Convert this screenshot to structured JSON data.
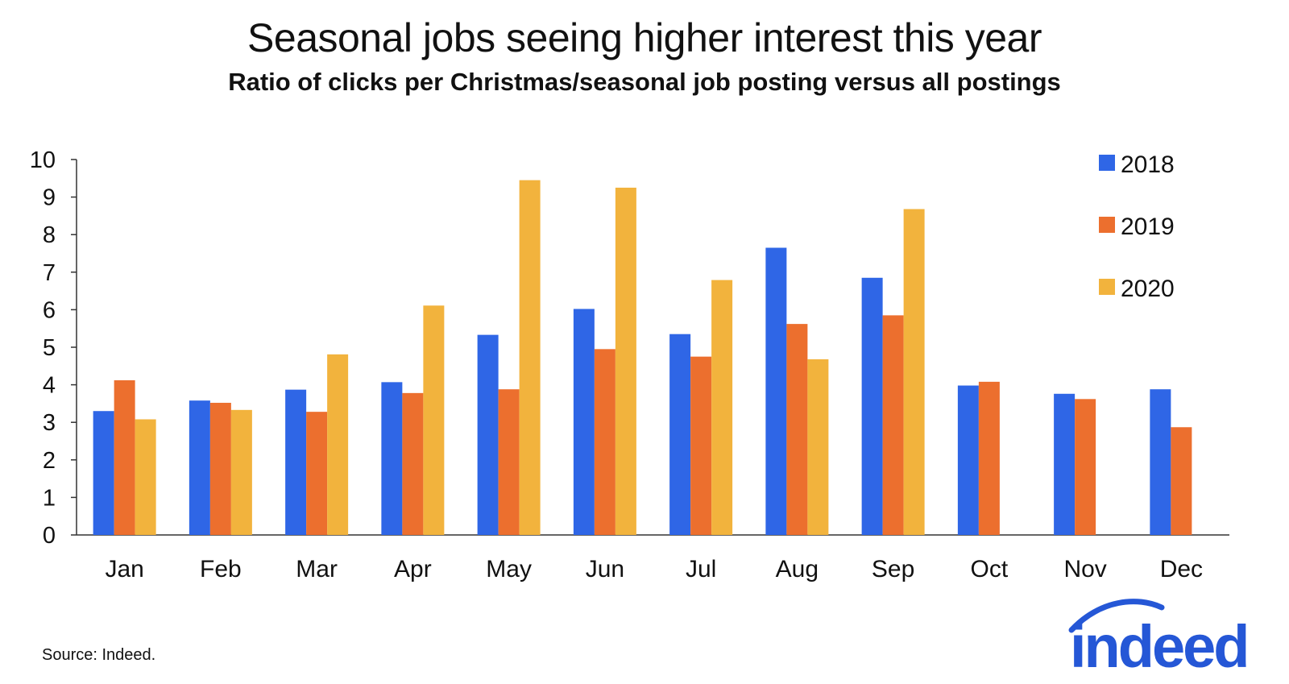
{
  "header": {
    "title": "Seasonal jobs seeing higher interest this year",
    "subtitle": "Ratio of clicks per Christmas/seasonal job posting versus all postings"
  },
  "footer": {
    "source": "Source: Indeed.",
    "logo_text": "indeed"
  },
  "colors": {
    "2018": "#2F66E6",
    "2019": "#EC6F2E",
    "2020": "#F2B33D",
    "logo": "#2557D6"
  },
  "chart_data": {
    "type": "bar",
    "title": "Seasonal jobs seeing higher interest this year",
    "subtitle": "Ratio of clicks per Christmas/seasonal job posting versus all postings",
    "xlabel": "",
    "ylabel": "",
    "ylim": [
      0,
      10
    ],
    "yticks": [
      "0",
      "1",
      "2",
      "3",
      "4",
      "5",
      "6",
      "7",
      "8",
      "9",
      "10"
    ],
    "grid": false,
    "legend_position": "top-right",
    "categories": [
      "Jan",
      "Feb",
      "Mar",
      "Apr",
      "May",
      "Jun",
      "Jul",
      "Aug",
      "Sep",
      "Oct",
      "Nov",
      "Dec"
    ],
    "series": [
      {
        "name": "2018",
        "color": "#2F66E6",
        "values": [
          3.3,
          3.58,
          3.87,
          4.07,
          5.33,
          6.02,
          5.35,
          7.65,
          6.85,
          3.98,
          3.76,
          3.88
        ]
      },
      {
        "name": "2019",
        "color": "#EC6F2E",
        "values": [
          4.12,
          3.52,
          3.28,
          3.78,
          3.88,
          4.95,
          4.75,
          5.62,
          5.85,
          4.08,
          3.62,
          2.87
        ]
      },
      {
        "name": "2020",
        "color": "#F2B33D",
        "values": [
          3.08,
          3.33,
          4.81,
          6.11,
          9.45,
          9.25,
          6.79,
          4.68,
          8.68,
          null,
          null,
          null
        ]
      }
    ]
  }
}
